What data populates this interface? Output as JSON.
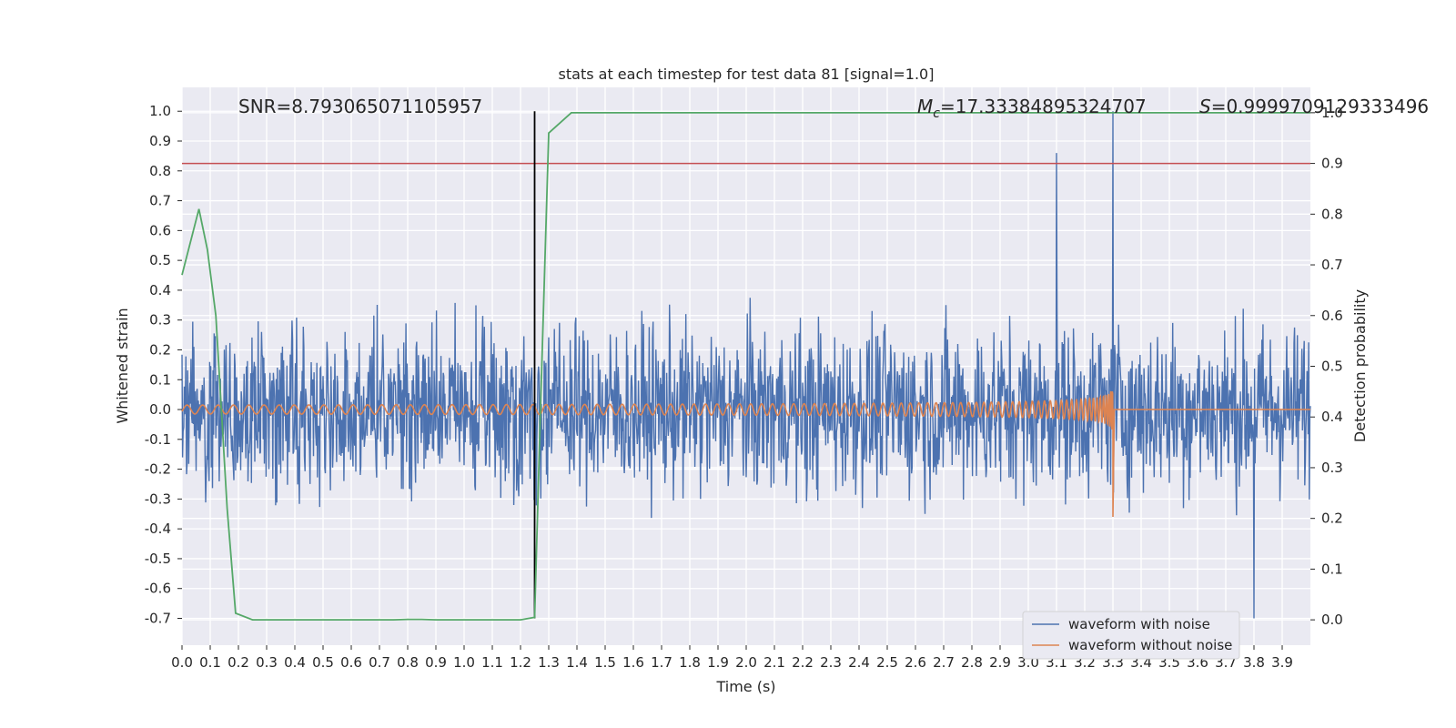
{
  "chart_data": {
    "type": "line",
    "title": "stats at each timestep for test data 81 [signal=1.0]",
    "xlabel": "Time (s)",
    "ylabel": "Whitened strain",
    "ylabel_right": "Detection probability",
    "xlim": [
      0.0,
      4.0
    ],
    "ylim": [
      -0.79,
      1.08
    ],
    "ylim_right": [
      -0.05,
      1.05
    ],
    "x_ticks": [
      "0.0",
      "0.1",
      "0.2",
      "0.3",
      "0.4",
      "0.5",
      "0.6",
      "0.7",
      "0.8",
      "0.9",
      "1.0",
      "1.1",
      "1.2",
      "1.3",
      "1.4",
      "1.5",
      "1.6",
      "1.7",
      "1.8",
      "1.9",
      "2.0",
      "2.1",
      "2.2",
      "2.3",
      "2.4",
      "2.5",
      "2.6",
      "2.7",
      "2.8",
      "2.9",
      "3.0",
      "3.1",
      "3.2",
      "3.3",
      "3.4",
      "3.5",
      "3.6",
      "3.7",
      "3.8",
      "3.9"
    ],
    "y_ticks": [
      "-0.7",
      "-0.6",
      "-0.5",
      "-0.4",
      "-0.3",
      "-0.2",
      "-0.1",
      "0.0",
      "0.1",
      "0.2",
      "0.3",
      "0.4",
      "0.5",
      "0.6",
      "0.7",
      "0.8",
      "0.9",
      "1.0"
    ],
    "y_ticks_right": [
      "0.0",
      "0.1",
      "0.2",
      "0.3",
      "0.4",
      "0.5",
      "0.6",
      "0.7",
      "0.8",
      "0.9",
      "1.0"
    ],
    "annotations": {
      "snr": "SNR=8.793065071105957",
      "mc_symbol": "M",
      "mc_sub": "c",
      "mc_value": "=17.33384895324707",
      "s_symbol": "S",
      "s_value": "=0.9999709129333496"
    },
    "threshold_line": {
      "axis": "right",
      "y": 0.9,
      "color": "#c44e52"
    },
    "vertical_marker": {
      "x": 1.25,
      "y_range": [
        -0.7,
        1.0
      ],
      "color": "#000000"
    },
    "series": [
      {
        "name": "waveform with noise",
        "color": "#4c72b0",
        "axis": "left",
        "description_values": {
          "approx_range": [
            -0.7,
            1.0
          ],
          "spikes": [
            [
              3.1,
              0.86
            ],
            [
              3.3,
              1.0
            ],
            [
              3.8,
              -0.7
            ]
          ]
        }
      },
      {
        "name": "waveform without noise",
        "color": "#dd8452",
        "axis": "left",
        "chirp": {
          "start_x": 0.0,
          "merger_x": 3.3,
          "start_amp": 0.015,
          "peak_amp": 0.37,
          "min_amp": -0.36,
          "post_merger_value": 0.0
        }
      },
      {
        "name": "",
        "color": "#55a868",
        "axis": "right",
        "x": [
          0.0,
          0.06,
          0.09,
          0.12,
          0.16,
          0.19,
          0.25,
          0.3,
          0.5,
          0.75,
          0.8,
          0.85,
          0.9,
          1.0,
          1.2,
          1.25,
          1.27,
          1.3,
          1.38,
          4.0
        ],
        "y": [
          0.68,
          0.81,
          0.73,
          0.6,
          0.22,
          0.013,
          0.0,
          0.0,
          0.0,
          0.0,
          0.001,
          0.001,
          0.0,
          0.0,
          0.0,
          0.005,
          0.4,
          0.96,
          1.0,
          1.0
        ]
      }
    ],
    "legend": {
      "placement": "lower-right",
      "entries": [
        "waveform with noise",
        "waveform without noise"
      ]
    },
    "grid": true,
    "colors": {
      "background": "#eaeaf2",
      "grid": "#ffffff",
      "text": "#262626"
    }
  }
}
